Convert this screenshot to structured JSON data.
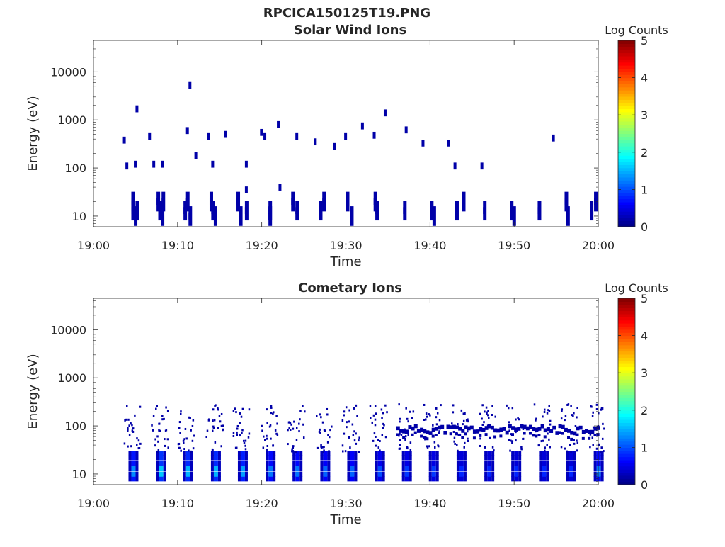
{
  "figure_title": "RPCICA150125T19.PNG",
  "chart_data": [
    {
      "type": "heatmap",
      "title": "Solar Wind Ions",
      "xlabel": "Time",
      "ylabel": "Energy (eV)",
      "yscale": "log",
      "ylim": [
        6,
        45000
      ],
      "xlim": [
        "19:00",
        "20:00"
      ],
      "x_ticks": [
        "19:00",
        "19:10",
        "19:20",
        "19:30",
        "19:40",
        "19:50",
        "20:00"
      ],
      "y_ticks": [
        10,
        100,
        1000,
        10000
      ],
      "colorbar": {
        "label": "Log Counts",
        "range": [
          0,
          5
        ],
        "ticks": [
          "0",
          "1",
          "2",
          "3",
          "4",
          "5"
        ],
        "colormap": "jet"
      },
      "grid": false,
      "cells": [
        {
          "t": "19:04.5",
          "e": 20,
          "v": 0.2
        },
        {
          "t": "19:04.5",
          "e": 13,
          "v": 0.2
        },
        {
          "t": "19:04.8",
          "e": 10,
          "v": 0.2
        },
        {
          "t": "19:05.0",
          "e": 13,
          "v": 0.2
        },
        {
          "t": "19:07.5",
          "e": 20,
          "v": 0.2
        },
        {
          "t": "19:07.7",
          "e": 13,
          "v": 0.2
        },
        {
          "t": "19:08.0",
          "e": 10,
          "v": 0.2
        },
        {
          "t": "19:08.1",
          "e": 20,
          "v": 0.2
        },
        {
          "t": "19:10.7",
          "e": 13,
          "v": 0.2
        },
        {
          "t": "19:11.0",
          "e": 20,
          "v": 0.2
        },
        {
          "t": "19:11.3",
          "e": 10,
          "v": 0.2
        },
        {
          "t": "19:13.8",
          "e": 20,
          "v": 0.2
        },
        {
          "t": "19:14.0",
          "e": 13,
          "v": 0.2
        },
        {
          "t": "19:14.3",
          "e": 10,
          "v": 0.2
        },
        {
          "t": "19:17.0",
          "e": 20,
          "v": 0.2
        },
        {
          "t": "19:17.3",
          "e": 10,
          "v": 0.2
        },
        {
          "t": "19:18.0",
          "e": 13,
          "v": 0.2
        },
        {
          "t": "19:20.8",
          "e": 13,
          "v": 0.2
        },
        {
          "t": "19:20.8",
          "e": 10,
          "v": 0.2
        },
        {
          "t": "19:23.5",
          "e": 20,
          "v": 0.2
        },
        {
          "t": "19:24.0",
          "e": 13,
          "v": 0.2
        },
        {
          "t": "19:26.8",
          "e": 13,
          "v": 0.2
        },
        {
          "t": "19:27.2",
          "e": 20,
          "v": 0.2
        },
        {
          "t": "19:30.0",
          "e": 20,
          "v": 0.2
        },
        {
          "t": "19:30.5",
          "e": 10,
          "v": 0.2
        },
        {
          "t": "19:33.3",
          "e": 20,
          "v": 0.2
        },
        {
          "t": "19:33.5",
          "e": 13,
          "v": 0.2
        },
        {
          "t": "19:36.8",
          "e": 13,
          "v": 0.2
        },
        {
          "t": "19:40.0",
          "e": 13,
          "v": 0.2
        },
        {
          "t": "19:40.3",
          "e": 10,
          "v": 0.2
        },
        {
          "t": "19:43.0",
          "e": 13,
          "v": 0.2
        },
        {
          "t": "19:43.8",
          "e": 20,
          "v": 0.2
        },
        {
          "t": "19:46.3",
          "e": 13,
          "v": 0.2
        },
        {
          "t": "19:49.5",
          "e": 13,
          "v": 0.2
        },
        {
          "t": "19:49.8",
          "e": 10,
          "v": 0.2
        },
        {
          "t": "19:52.8",
          "e": 13,
          "v": 0.2
        },
        {
          "t": "19:56.0",
          "e": 20,
          "v": 0.2
        },
        {
          "t": "19:56.2",
          "e": 10,
          "v": 0.2
        },
        {
          "t": "19:59.0",
          "e": 13,
          "v": 0.2
        },
        {
          "t": "19:59.5",
          "e": 20,
          "v": 0.2
        },
        {
          "t": "19:03.5",
          "e": 380,
          "v": 0.2
        },
        {
          "t": "19:03.8",
          "e": 110,
          "v": 0.2
        },
        {
          "t": "19:04.8",
          "e": 120,
          "v": 0.2
        },
        {
          "t": "19:05.0",
          "e": 1700,
          "v": 0.2
        },
        {
          "t": "19:06.5",
          "e": 450,
          "v": 0.2
        },
        {
          "t": "19:07.0",
          "e": 120,
          "v": 0.2
        },
        {
          "t": "19:08.0",
          "e": 120,
          "v": 0.2
        },
        {
          "t": "19:11.0",
          "e": 600,
          "v": 0.2
        },
        {
          "t": "19:11.3",
          "e": 5200,
          "v": 0.2
        },
        {
          "t": "19:12.0",
          "e": 180,
          "v": 0.2
        },
        {
          "t": "19:13.5",
          "e": 450,
          "v": 0.2
        },
        {
          "t": "19:14.0",
          "e": 120,
          "v": 0.2
        },
        {
          "t": "19:15.5",
          "e": 500,
          "v": 0.2
        },
        {
          "t": "19:18.0",
          "e": 120,
          "v": 0.2
        },
        {
          "t": "19:18.0",
          "e": 35,
          "v": 0.2
        },
        {
          "t": "19:19.8",
          "e": 550,
          "v": 0.2
        },
        {
          "t": "19:20.2",
          "e": 450,
          "v": 0.2
        },
        {
          "t": "19:21.8",
          "e": 800,
          "v": 0.2
        },
        {
          "t": "19:22.0",
          "e": 40,
          "v": 0.2
        },
        {
          "t": "19:24.0",
          "e": 450,
          "v": 0.2
        },
        {
          "t": "19:26.2",
          "e": 350,
          "v": 0.2
        },
        {
          "t": "19:28.5",
          "e": 280,
          "v": 0.2
        },
        {
          "t": "19:29.8",
          "e": 450,
          "v": 0.2
        },
        {
          "t": "19:31.8",
          "e": 750,
          "v": 0.2
        },
        {
          "t": "19:33.2",
          "e": 480,
          "v": 0.2
        },
        {
          "t": "19:34.5",
          "e": 1400,
          "v": 0.2
        },
        {
          "t": "19:37.0",
          "e": 620,
          "v": 0.2
        },
        {
          "t": "19:39.0",
          "e": 330,
          "v": 0.2
        },
        {
          "t": "19:42.0",
          "e": 330,
          "v": 0.2
        },
        {
          "t": "19:42.8",
          "e": 110,
          "v": 0.2
        },
        {
          "t": "19:46.0",
          "e": 110,
          "v": 0.2
        },
        {
          "t": "19:54.5",
          "e": 420,
          "v": 0.2
        }
      ]
    },
    {
      "type": "heatmap",
      "title": "Cometary Ions",
      "xlabel": "Time",
      "ylabel": "Energy (eV)",
      "yscale": "log",
      "ylim": [
        6,
        45000
      ],
      "xlim": [
        "19:00",
        "20:00"
      ],
      "x_ticks": [
        "19:00",
        "19:10",
        "19:20",
        "19:30",
        "19:40",
        "19:50",
        "20:00"
      ],
      "y_ticks": [
        10,
        100,
        1000,
        10000
      ],
      "colorbar": {
        "label": "Log Counts",
        "range": [
          0,
          5
        ],
        "ticks": [
          "0",
          "1",
          "2",
          "3",
          "4",
          "5"
        ],
        "colormap": "jet"
      },
      "grid": false,
      "bursts": [
        {
          "t": "19:04.5",
          "v_low": 1.3
        },
        {
          "t": "19:07.8",
          "v_low": 1.6
        },
        {
          "t": "19:11.0",
          "v_low": 1.5
        },
        {
          "t": "19:14.3",
          "v_low": 1.5
        },
        {
          "t": "19:17.5",
          "v_low": 1.4
        },
        {
          "t": "19:20.8",
          "v_low": 1.2
        },
        {
          "t": "19:24.0",
          "v_low": 1.2
        },
        {
          "t": "19:27.3",
          "v_low": 1.1
        },
        {
          "t": "19:30.5",
          "v_low": 1.1
        },
        {
          "t": "19:33.8",
          "v_low": 1.0
        },
        {
          "t": "19:37.0",
          "v_low": 0.9
        },
        {
          "t": "19:40.2",
          "v_low": 0.9
        },
        {
          "t": "19:43.5",
          "v_low": 0.8
        },
        {
          "t": "19:46.8",
          "v_low": 0.8
        },
        {
          "t": "19:50.0",
          "v_low": 0.8
        },
        {
          "t": "19:53.3",
          "v_low": 0.8
        },
        {
          "t": "19:56.5",
          "v_low": 0.8
        },
        {
          "t": "19:59.8",
          "v_low": 1.2
        }
      ],
      "band_energy_eV": [
        70,
        100
      ],
      "band_start": "19:36",
      "band_end": "20:00"
    }
  ]
}
